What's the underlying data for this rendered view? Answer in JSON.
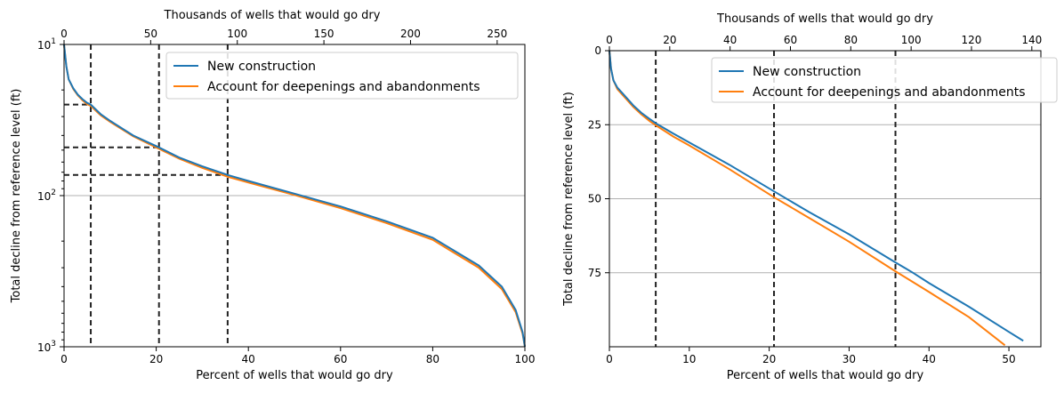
{
  "chart_data": [
    {
      "type": "line",
      "xlabel": "Percent of wells that would go dry",
      "x2label": "Thousands of wells that would go dry",
      "ylabel": "Total decline from reference level (ft)",
      "xlim": [
        0,
        100
      ],
      "x2lim": [
        0,
        266
      ],
      "ylim": [
        10,
        1000
      ],
      "yscale": "log",
      "y_inverted": true,
      "x_ticks": [
        "0",
        "20",
        "40",
        "60",
        "80",
        "100"
      ],
      "x2_ticks": [
        "0",
        "50",
        "100",
        "150",
        "200",
        "250"
      ],
      "y_ticks": [
        {
          "base": "10",
          "exp": "1",
          "value": 10
        },
        {
          "base": "10",
          "exp": "2",
          "value": 100
        },
        {
          "base": "10",
          "exp": "3",
          "value": 1000
        }
      ],
      "grid": "horizontal at 10^2",
      "legend_position": "top-right",
      "series": [
        {
          "name": "New construction",
          "color": "#1f77b4",
          "points": [
            [
              0,
              10
            ],
            [
              0.5,
              14
            ],
            [
              1,
              17
            ],
            [
              2,
              19.5
            ],
            [
              3,
              21.5
            ],
            [
              4,
              23
            ],
            [
              5,
              24.3
            ],
            [
              5.8,
              25
            ],
            [
              8,
              29
            ],
            [
              10,
              32
            ],
            [
              15,
              40
            ],
            [
              20,
              47
            ],
            [
              20.6,
              48
            ],
            [
              25,
              56
            ],
            [
              30,
              64
            ],
            [
              35.5,
              73
            ],
            [
              40,
              80
            ],
            [
              50,
              97
            ],
            [
              60,
              118
            ],
            [
              70,
              148
            ],
            [
              80,
              190
            ],
            [
              90,
              290
            ],
            [
              95,
              400
            ],
            [
              98,
              570
            ],
            [
              99.5,
              800
            ],
            [
              100,
              1000
            ]
          ]
        },
        {
          "name": "Account for deepenings and abandonments",
          "color": "#ff7f0e",
          "points": [
            [
              0,
              10
            ],
            [
              0.5,
              14
            ],
            [
              1,
              17
            ],
            [
              2,
              19.7
            ],
            [
              3,
              21.7
            ],
            [
              4,
              23.4
            ],
            [
              5,
              24.8
            ],
            [
              5.8,
              25.5
            ],
            [
              8,
              29.5
            ],
            [
              10,
              32.5
            ],
            [
              15,
              40.5
            ],
            [
              20,
              48
            ],
            [
              20.6,
              49
            ],
            [
              25,
              57
            ],
            [
              30,
              65.5
            ],
            [
              35.5,
              75
            ],
            [
              40,
              82
            ],
            [
              50,
              99
            ],
            [
              60,
              121
            ],
            [
              70,
              152
            ],
            [
              80,
              196
            ],
            [
              90,
              300
            ],
            [
              95,
              415
            ],
            [
              98,
              590
            ],
            [
              99.5,
              820
            ],
            [
              100,
              1000
            ]
          ]
        }
      ],
      "reference_lines": {
        "vertical_x": [
          5.8,
          20.6,
          35.5
        ],
        "horizontal_y": [
          25,
          48,
          73
        ],
        "style": "dashed"
      }
    },
    {
      "type": "line",
      "xlabel": "Percent of wells that would go dry",
      "x2label": "Thousands of wells that would go dry",
      "ylabel": "Total decline from reference level (ft)",
      "xlim": [
        0,
        54
      ],
      "x2lim": [
        0,
        143
      ],
      "ylim": [
        0,
        100
      ],
      "y_inverted": true,
      "x_ticks": [
        "0",
        "10",
        "20",
        "30",
        "40",
        "50"
      ],
      "x2_ticks": [
        "0",
        "20",
        "40",
        "60",
        "80",
        "100",
        "120",
        "140"
      ],
      "y_ticks": [
        "0",
        "25",
        "50",
        "75"
      ],
      "grid": "horizontal at 25, 50, 75",
      "legend_position": "top-right",
      "series": [
        {
          "name": "New construction",
          "color": "#1f77b4",
          "points": [
            [
              0,
              0
            ],
            [
              0.2,
              6
            ],
            [
              0.5,
              10
            ],
            [
              1,
              12.5
            ],
            [
              2,
              15.5
            ],
            [
              3,
              18.5
            ],
            [
              4,
              21
            ],
            [
              5,
              23
            ],
            [
              5.8,
              24.5
            ],
            [
              8,
              28
            ],
            [
              10,
              31
            ],
            [
              15,
              38.5
            ],
            [
              20.6,
              47.5
            ],
            [
              25,
              54.5
            ],
            [
              30,
              62
            ],
            [
              35.8,
              71.5
            ],
            [
              38,
              75
            ],
            [
              40,
              78.5
            ],
            [
              45,
              86.5
            ],
            [
              50,
              95
            ],
            [
              51.8,
              98
            ]
          ]
        },
        {
          "name": "Account for deepenings and abandonments",
          "color": "#ff7f0e",
          "points": [
            [
              0,
              0
            ],
            [
              0.2,
              6
            ],
            [
              0.5,
              10
            ],
            [
              1,
              13
            ],
            [
              2,
              16
            ],
            [
              3,
              19
            ],
            [
              4,
              21.5
            ],
            [
              5,
              23.7
            ],
            [
              5.8,
              25.2
            ],
            [
              8,
              29
            ],
            [
              10,
              32
            ],
            [
              15,
              40
            ],
            [
              20.6,
              49.5
            ],
            [
              25,
              56.5
            ],
            [
              30,
              64.5
            ],
            [
              35.8,
              74.5
            ],
            [
              40,
              81.5
            ],
            [
              45,
              90
            ],
            [
              49.5,
              99.5
            ]
          ]
        }
      ],
      "reference_lines": {
        "vertical_x": [
          5.8,
          20.6,
          35.8
        ],
        "style": "dashed"
      }
    }
  ]
}
